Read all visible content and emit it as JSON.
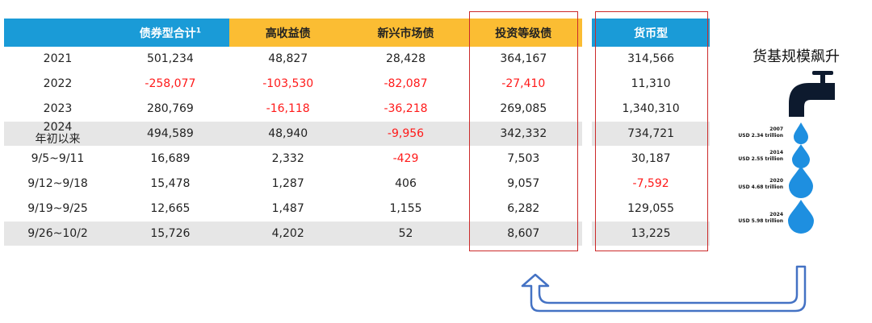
{
  "headers": {
    "bond_total": "债券型合计",
    "bond_total_sup": "1",
    "high_yield": "高收益债",
    "emerging": "新兴市场债",
    "investment_grade": "投资等级债",
    "money_market": "货币型"
  },
  "rows": [
    {
      "label": [
        "2021"
      ],
      "values": [
        "501,234",
        "48,827",
        "28,428",
        "364,167",
        "314,566"
      ],
      "neg": [
        false,
        false,
        false,
        false,
        false
      ]
    },
    {
      "label": [
        "2022"
      ],
      "values": [
        "-258,077",
        "-103,530",
        "-82,087",
        "-27,410",
        "11,310"
      ],
      "neg": [
        true,
        true,
        true,
        true,
        false
      ]
    },
    {
      "label": [
        "2023"
      ],
      "values": [
        "280,769",
        "-16,118",
        "-36,218",
        "269,085",
        "1,340,310"
      ],
      "neg": [
        false,
        true,
        true,
        false,
        false
      ]
    },
    {
      "label": [
        "2024",
        "年初以来"
      ],
      "values": [
        "494,589",
        "48,940",
        "-9,956",
        "342,332",
        "734,721"
      ],
      "neg": [
        false,
        false,
        true,
        false,
        false
      ]
    },
    {
      "label": [
        "9/5~9/11"
      ],
      "values": [
        "16,689",
        "2,332",
        "-429",
        "7,503",
        "30,187"
      ],
      "neg": [
        false,
        false,
        true,
        false,
        false
      ]
    },
    {
      "label": [
        "9/12~9/18"
      ],
      "values": [
        "15,478",
        "1,287",
        "406",
        "9,057",
        "-7,592"
      ],
      "neg": [
        false,
        false,
        false,
        false,
        true
      ]
    },
    {
      "label": [
        "9/19~9/25"
      ],
      "values": [
        "12,665",
        "1,487",
        "1,155",
        "6,282",
        "129,055"
      ],
      "neg": [
        false,
        false,
        false,
        false,
        false
      ]
    },
    {
      "label": [
        "9/26~10/2"
      ],
      "values": [
        "15,726",
        "4,202",
        "52",
        "8,607",
        "13,225"
      ],
      "neg": [
        false,
        false,
        false,
        false,
        false
      ]
    }
  ],
  "side_title": "货基规模飙升",
  "drops": [
    {
      "year": "2007",
      "amount": "USD 2.34 trillion"
    },
    {
      "year": "2014",
      "amount": "USD 2.55 trillion"
    },
    {
      "year": "2020",
      "amount": "USD 4.68 trillion"
    },
    {
      "year": "2024",
      "amount": "USD 5.98 trillion"
    }
  ],
  "colors": {
    "header_blue": "#1a9bd7",
    "header_yellow": "#fbbd33",
    "negative": "#ff1a1a",
    "highlight_box": "#cc2a2a",
    "faucet": "#0d1a2e",
    "drop": "#1e8fe0",
    "arrow": "#4472c4"
  },
  "icons": [
    "faucet-icon",
    "water-drop-icon",
    "return-arrow-icon"
  ]
}
